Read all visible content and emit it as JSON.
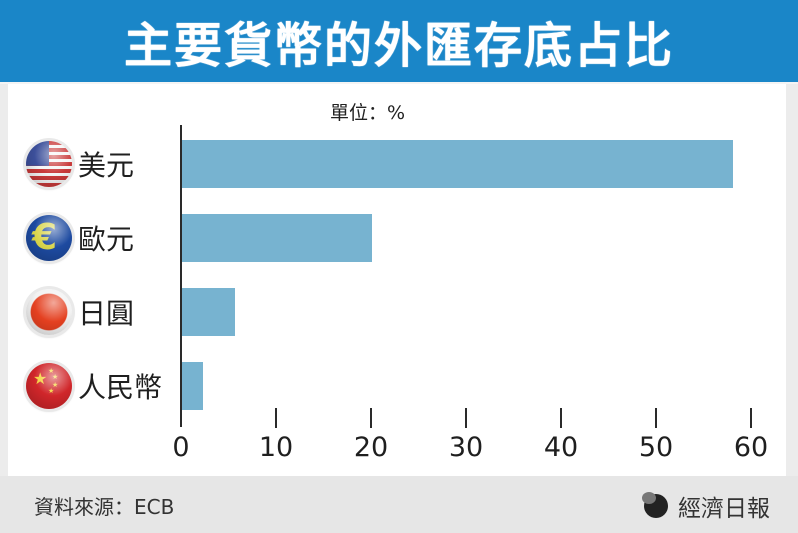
{
  "title": "主要貨幣的外匯存底占比",
  "unit_label": "單位：%",
  "categories": [
    {
      "label": "美元",
      "flag": "us-flag-icon"
    },
    {
      "label": "歐元",
      "flag": "euro-symbol-icon"
    },
    {
      "label": "日圓",
      "flag": "japan-flag-icon"
    },
    {
      "label": "人民幣",
      "flag": "china-flag-icon"
    }
  ],
  "x_ticks": [
    "0",
    "10",
    "20",
    "30",
    "40",
    "50",
    "60"
  ],
  "footer": {
    "source": "資料來源：ECB",
    "brand": "經濟日報"
  },
  "colors": {
    "title_bar": "#1a86c8",
    "bar": "#77b3d0",
    "footer": "#e6e6e6"
  },
  "chart_data": {
    "type": "bar",
    "orientation": "horizontal",
    "title": "主要貨幣的外匯存底占比",
    "categories": [
      "美元",
      "歐元",
      "日圓",
      "人民幣"
    ],
    "values": [
      58,
      20,
      5.6,
      2.2
    ],
    "xlabel": "",
    "ylabel": "",
    "unit": "%",
    "xlim": [
      0,
      60
    ],
    "x_ticks": [
      0,
      10,
      20,
      30,
      40,
      50,
      60
    ],
    "grid": false,
    "legend": null,
    "source": "資料來源：ECB"
  }
}
